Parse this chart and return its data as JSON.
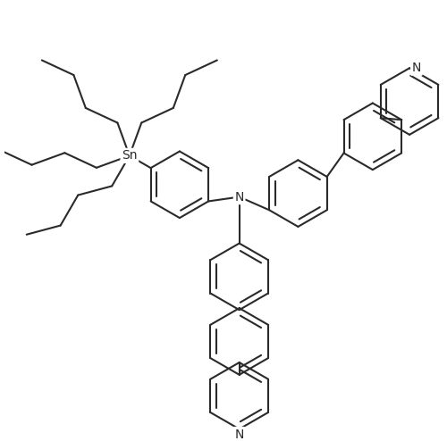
{
  "background_color": "#ffffff",
  "line_color": "#2a2a2a",
  "line_width": 1.5,
  "figsize": [
    5.0,
    4.94
  ],
  "dpi": 100,
  "xlim": [
    0,
    500
  ],
  "ylim": [
    0,
    494
  ]
}
